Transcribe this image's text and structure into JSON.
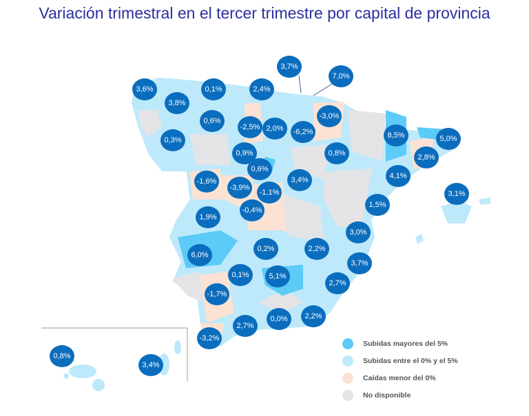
{
  "title": "Variación trimestral en el tercer trimestre por capital de provincia",
  "colors": {
    "above5": "#5ccbf7",
    "between0and5": "#bde9fb",
    "below0": "#fbe2d3",
    "na": "#e4e4e6",
    "bubble": "#0b6dbd",
    "title": "#2b2f9e"
  },
  "legend": [
    {
      "label": "Subidas mayores del 5%",
      "color": "#5ccbf7"
    },
    {
      "label": "Subidas entre el 0% y el 5%",
      "color": "#bde9fb"
    },
    {
      "label": "Caídas menor del 0%",
      "color": "#fbe2d3"
    },
    {
      "label": "No disponible",
      "color": "#e4e4e6"
    }
  ],
  "values": [
    "3,6%",
    "0,1%",
    "2,4%",
    "3,7%",
    "7,0%",
    "3,8%",
    "0,6%",
    "-2,5%",
    "2,0%",
    "-6,2%",
    "-3,0%",
    "0,3%",
    "0,9%",
    "0,6%",
    "0,8%",
    "8,5%",
    "5,0%",
    "2,8%",
    "-1,6%",
    "-3,9%",
    "-1,1%",
    "3,4%",
    "4,1%",
    "3,1%",
    "-0,4%",
    "1,5%",
    "1,9%",
    "3,0%",
    "6,0%",
    "0,2%",
    "2,2%",
    "3,7%",
    "0,1%",
    "5,1%",
    "2,7%",
    "-1,7%",
    "2,2%",
    "0,0%",
    "2,7%",
    "-3,2%",
    "0,8%",
    "3,4%"
  ]
}
